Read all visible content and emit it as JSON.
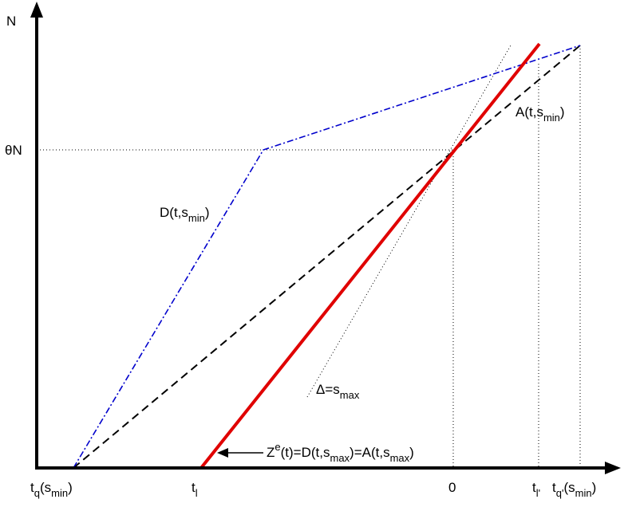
{
  "axes": {
    "y_label": "N",
    "theta_n_label": "θN"
  },
  "x_ticks": {
    "tq_smin": {
      "main": "t",
      "sub": "q",
      "rest_open": "(s",
      "rest_sub": "min",
      "rest_close": ")"
    },
    "tl": {
      "main": "t",
      "sub": "l"
    },
    "zero": "0",
    "tl_prime": {
      "main": "t",
      "sub": "l'"
    },
    "tq_prime_smin": {
      "main": "t",
      "sub": "q'",
      "rest_open": "(s",
      "rest_sub": "min",
      "rest_close": ")"
    }
  },
  "curves": {
    "D_smin": {
      "pre": "D(t,s",
      "sub": "min",
      "post": ")",
      "color": "#0000cc"
    },
    "A_smin": {
      "pre": "A(t,s",
      "sub": "min",
      "post": ")",
      "color": "#000000"
    },
    "Ze": {
      "color": "#e00000"
    }
  },
  "annotations": {
    "delta": {
      "pre": "Δ=s",
      "sub": "max"
    },
    "ze_eq": {
      "z": "Z",
      "e_sup": "e",
      "mid1": "(t)=D(t,s",
      "sub1": "max",
      "mid2": ")=A(t,s",
      "sub2": "max",
      "end": ")"
    }
  }
}
